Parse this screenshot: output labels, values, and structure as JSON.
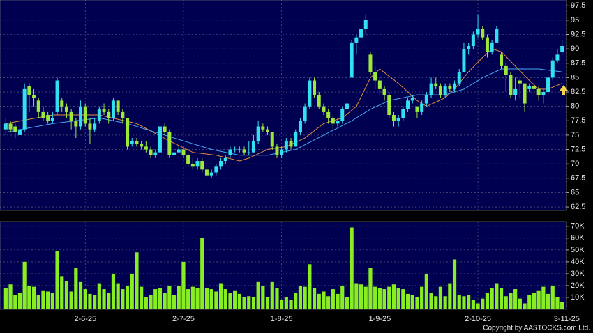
{
  "chart_data": {
    "type": "candlestick",
    "categories": [
      null,
      null,
      null,
      null,
      null,
      null,
      null,
      null,
      null,
      null,
      null,
      null,
      null,
      null,
      null,
      null,
      null,
      "2-6-25",
      null,
      null,
      null,
      null,
      null,
      null,
      null,
      null,
      null,
      null,
      null,
      null,
      null,
      null,
      null,
      null,
      null,
      null,
      null,
      null,
      "2-7-25",
      null,
      null,
      null,
      null,
      null,
      null,
      null,
      null,
      null,
      null,
      null,
      null,
      null,
      null,
      null,
      null,
      null,
      null,
      null,
      null,
      "1-8-25",
      null,
      null,
      null,
      null,
      null,
      null,
      null,
      null,
      null,
      null,
      null,
      null,
      null,
      null,
      null,
      null,
      null,
      null,
      null,
      null,
      "1-9-25",
      null,
      null,
      null,
      null,
      null,
      null,
      null,
      null,
      null,
      null,
      null,
      null,
      null,
      null,
      null,
      null,
      null,
      null,
      null,
      null,
      "2-10-25",
      null,
      null,
      null,
      null,
      null,
      null,
      null,
      null,
      null,
      null,
      null,
      null,
      null,
      null,
      null,
      null,
      null,
      null,
      "3-11-25"
    ],
    "candles": [
      [
        76,
        78,
        75,
        77
      ],
      [
        77,
        77.5,
        75.5,
        76
      ],
      [
        76.5,
        77,
        74.5,
        75.5
      ],
      [
        75,
        77,
        74.5,
        76
      ],
      [
        76,
        84,
        75.5,
        83
      ],
      [
        83.5,
        84,
        79,
        82
      ],
      [
        82,
        83,
        80,
        81.5
      ],
      [
        81,
        81.5,
        78,
        79
      ],
      [
        79,
        80,
        77.5,
        78
      ],
      [
        78.5,
        79,
        77,
        77.5
      ],
      [
        77.5,
        79,
        77,
        78
      ],
      [
        79,
        85,
        78.5,
        84.5
      ],
      [
        81,
        81.5,
        79,
        80
      ],
      [
        80,
        80.5,
        78,
        79
      ],
      [
        79,
        79.5,
        76,
        77.5
      ],
      [
        77.5,
        78,
        74.5,
        76.5
      ],
      [
        76.5,
        81,
        76,
        80
      ],
      [
        80,
        80.5,
        76.5,
        77
      ],
      [
        77,
        78,
        73.5,
        76
      ],
      [
        76,
        78,
        75.5,
        77
      ],
      [
        77.5,
        80,
        77,
        79.5
      ],
      [
        79.5,
        80.5,
        78.5,
        79
      ],
      [
        79,
        79.5,
        77,
        78
      ],
      [
        78,
        81.5,
        77.5,
        81
      ],
      [
        81,
        81,
        78.5,
        79
      ],
      [
        79,
        79.5,
        77,
        78
      ],
      [
        78,
        78,
        72.5,
        73
      ],
      [
        73.5,
        74.5,
        73,
        74
      ],
      [
        74,
        74.5,
        73,
        73.5
      ],
      [
        73.5,
        74,
        72.5,
        73
      ],
      [
        73,
        74,
        72,
        72.5
      ],
      [
        72.5,
        73,
        71,
        71.5
      ],
      [
        71.5,
        72.5,
        71,
        72
      ],
      [
        72,
        77,
        72,
        76.5
      ],
      [
        76.5,
        77,
        75,
        75.5
      ],
      [
        75.5,
        76,
        71,
        71.5
      ],
      [
        71.5,
        72.5,
        71,
        72
      ],
      [
        72,
        73,
        72,
        72.5
      ],
      [
        72.5,
        73,
        71,
        71.5
      ],
      [
        71.5,
        72,
        69.5,
        70
      ],
      [
        70,
        71,
        69,
        69.5
      ],
      [
        69.5,
        71,
        69,
        70.5
      ],
      [
        70.5,
        71,
        68.5,
        69
      ],
      [
        69,
        69.5,
        67.5,
        68
      ],
      [
        68,
        69,
        67.5,
        68.5
      ],
      [
        68.5,
        70,
        68,
        69.5
      ],
      [
        69.5,
        71,
        69,
        70.5
      ],
      [
        70.5,
        71.5,
        70,
        71
      ],
      [
        71.5,
        73,
        71,
        72.5
      ],
      [
        72.5,
        73,
        72,
        72.5
      ],
      [
        72.5,
        73,
        72,
        72.5
      ],
      [
        72.5,
        73,
        71.5,
        72
      ],
      [
        72,
        74,
        71.5,
        72
      ],
      [
        72,
        75,
        72,
        74
      ],
      [
        74,
        77.5,
        73.5,
        76.5
      ],
      [
        76.5,
        77,
        75.5,
        76
      ],
      [
        76,
        76.5,
        75,
        75.5
      ],
      [
        75.5,
        75.5,
        72.5,
        73
      ],
      [
        73,
        73.5,
        71,
        71.5
      ],
      [
        71.5,
        73,
        71,
        72.5
      ],
      [
        72.5,
        74.5,
        72,
        74
      ],
      [
        74,
        74.5,
        72.5,
        73
      ],
      [
        73,
        76,
        73,
        75.5
      ],
      [
        75.5,
        78,
        75,
        77.5
      ],
      [
        77.5,
        80.5,
        77,
        80
      ],
      [
        80,
        85,
        79.5,
        84.5
      ],
      [
        84.5,
        85,
        81.5,
        82
      ],
      [
        82,
        82.5,
        79.5,
        80
      ],
      [
        80,
        80.5,
        78.5,
        79
      ],
      [
        79,
        79.5,
        77,
        78
      ],
      [
        78,
        78.5,
        76,
        77
      ],
      [
        77,
        78,
        76.5,
        77.5
      ],
      [
        77.5,
        80,
        77,
        79.5
      ],
      [
        79.5,
        81,
        79,
        80.5
      ],
      [
        85,
        91.5,
        85,
        91
      ],
      [
        91,
        92.5,
        89,
        92
      ],
      [
        92,
        94,
        91,
        93.5
      ],
      [
        93.5,
        96,
        92.5,
        95
      ],
      [
        89,
        89.5,
        85.5,
        86
      ],
      [
        86,
        87,
        83,
        84.5
      ],
      [
        84.5,
        85,
        82,
        83
      ],
      [
        83,
        83.5,
        81,
        82
      ],
      [
        82,
        82.5,
        78,
        78.5
      ],
      [
        78.5,
        79,
        76.5,
        77.5
      ],
      [
        77.5,
        78.5,
        76.5,
        78
      ],
      [
        78,
        80,
        77.5,
        79.5
      ],
      [
        79.5,
        81.5,
        79,
        81
      ],
      [
        81,
        82,
        80.5,
        81.5
      ],
      [
        80,
        80,
        78,
        79
      ],
      [
        79,
        81,
        78.5,
        80.5
      ],
      [
        80.5,
        82.5,
        80,
        82
      ],
      [
        82,
        85,
        81.5,
        84
      ],
      [
        84,
        85,
        83,
        83.5
      ],
      [
        83.5,
        84,
        81.5,
        82
      ],
      [
        82,
        84,
        81.5,
        83.5
      ],
      [
        83.5,
        84,
        82.5,
        83
      ],
      [
        83,
        84.5,
        82.5,
        84
      ],
      [
        84,
        86.5,
        83.5,
        86
      ],
      [
        86,
        91,
        86,
        90
      ],
      [
        90,
        91,
        89,
        90.5
      ],
      [
        90.5,
        93,
        90,
        92.5
      ],
      [
        92.5,
        96,
        92,
        93.5
      ],
      [
        93.5,
        94,
        91.5,
        92
      ],
      [
        92,
        92.5,
        88.5,
        89.5
      ],
      [
        89.5,
        91.5,
        89,
        91
      ],
      [
        91,
        94,
        91,
        93.5
      ],
      [
        89,
        89.5,
        86.5,
        87
      ],
      [
        87,
        87.5,
        82.5,
        85.5
      ],
      [
        85.5,
        86,
        81.5,
        82
      ],
      [
        82,
        85,
        81,
        83
      ],
      [
        84.5,
        85,
        81.5,
        84
      ],
      [
        84,
        84,
        79,
        80.5
      ],
      [
        83,
        84,
        82.5,
        83.5
      ],
      [
        83.5,
        84,
        82,
        83
      ],
      [
        83,
        83.5,
        81,
        82
      ],
      [
        82,
        83,
        80.5,
        82.5
      ],
      [
        82.5,
        85.5,
        82,
        85
      ],
      [
        85,
        88.5,
        84.5,
        88
      ],
      [
        88,
        90,
        87.5,
        89
      ],
      [
        89.5,
        91.5,
        89,
        90.5
      ]
    ],
    "up_color": "#33e0f0",
    "down_color": "#9be83a",
    "moving_averages": [
      {
        "color": "#e8903a",
        "x": [
          0,
          10,
          20,
          28,
          35,
          40,
          45,
          50,
          52,
          56,
          60,
          64,
          68,
          72,
          75,
          78,
          80,
          84,
          88,
          90,
          94,
          96,
          99,
          102,
          104,
          106,
          109,
          112,
          114,
          116,
          119
        ],
        "values": [
          77,
          78.5,
          78.5,
          77,
          74,
          72,
          71.5,
          70.5,
          71,
          72.5,
          73,
          74.5,
          77,
          78,
          80,
          85,
          86.5,
          84,
          81,
          80,
          81.5,
          83,
          86,
          88.5,
          90,
          89.5,
          87,
          84.5,
          83,
          83,
          84
        ]
      },
      {
        "color": "#4aa8f0",
        "x": [
          0,
          10,
          20,
          26,
          32,
          38,
          44,
          50,
          56,
          62,
          68,
          74,
          78,
          82,
          88,
          94,
          98,
          102,
          106,
          110,
          114,
          119
        ],
        "values": [
          75.5,
          77,
          78,
          77,
          75.5,
          74,
          72.5,
          71.5,
          71.5,
          72.5,
          75,
          77.5,
          79.5,
          81,
          82,
          82,
          83,
          85,
          86.5,
          86.5,
          86.5,
          86
        ]
      }
    ],
    "ylim": [
      61.9,
      98.5
    ],
    "yticks": [
      62.5,
      65,
      67.5,
      70,
      72.5,
      75,
      77.5,
      80,
      82.5,
      85,
      87.5,
      90,
      92.5,
      95,
      97.5
    ],
    "grid": true,
    "volume": {
      "color": "#88ee22",
      "values": [
        18,
        21,
        12,
        14,
        40,
        20,
        19,
        12,
        16,
        15,
        14,
        49,
        28,
        24,
        15,
        35,
        23,
        17,
        13,
        12,
        22,
        17,
        14,
        30,
        22,
        17,
        20,
        30,
        48,
        19,
        10,
        12,
        17,
        18,
        14,
        20,
        12,
        20,
        40,
        17,
        19,
        18,
        60,
        18,
        17,
        15,
        22,
        17,
        14,
        16,
        13,
        10,
        11,
        10,
        23,
        20,
        10,
        23,
        18,
        8,
        10,
        8,
        14,
        20,
        19,
        38,
        18,
        13,
        15,
        11,
        17,
        13,
        20,
        10,
        69,
        22,
        21,
        19,
        35,
        19,
        18,
        17,
        19,
        21,
        18,
        17,
        13,
        12,
        10,
        19,
        30,
        14,
        11,
        19,
        11,
        22,
        42,
        12,
        11,
        12,
        8,
        5,
        9,
        14,
        18,
        22,
        18,
        11,
        14,
        17,
        9,
        5,
        12,
        14,
        16,
        19,
        13,
        20,
        10,
        6
      ],
      "ylim": [
        0,
        74
      ],
      "yticks": [
        {
          "value": 10,
          "label": "10K"
        },
        {
          "value": 20,
          "label": "20K"
        },
        {
          "value": 30,
          "label": "30K"
        },
        {
          "value": 40,
          "label": "40K"
        },
        {
          "value": 50,
          "label": "50K"
        },
        {
          "value": 60,
          "label": "60K"
        },
        {
          "value": 70,
          "label": "70K"
        }
      ]
    },
    "copyright": "Copyright by AASTOCKS.com Ltd."
  }
}
